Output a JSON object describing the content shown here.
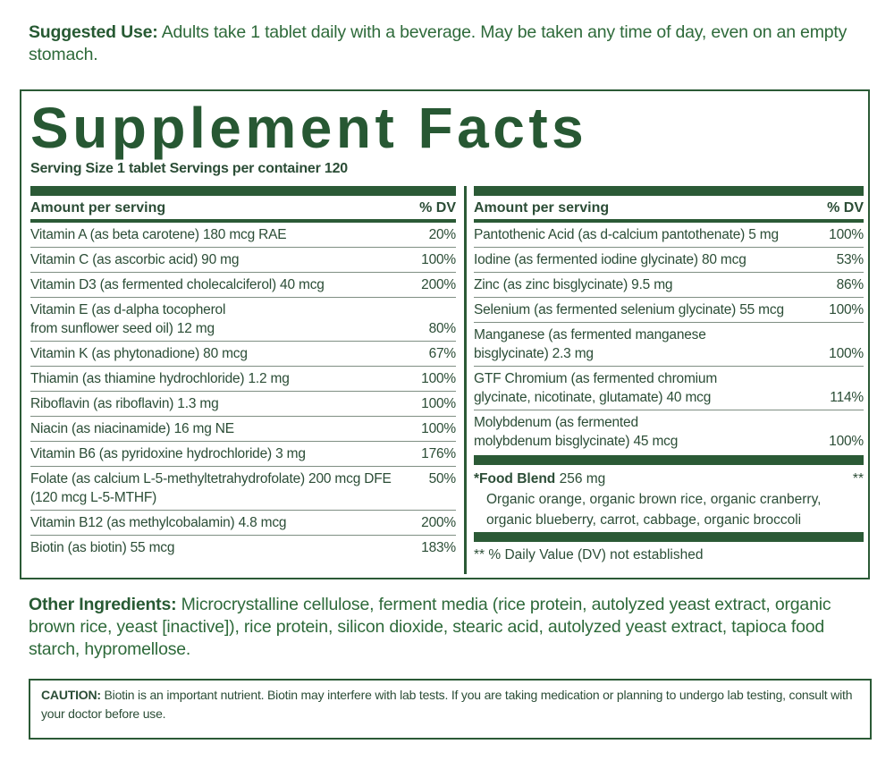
{
  "suggested_use": {
    "label": "Suggested Use:",
    "text": "Adults take 1 tablet daily with a beverage. May be taken any time of day, even on an empty stomach."
  },
  "facts": {
    "title": "Supplement Facts",
    "serving": "Serving Size 1 tablet  Servings per container 120",
    "header_amount": "Amount per serving",
    "header_dv": "% DV",
    "left_rows": [
      {
        "name": "Vitamin A (as beta carotene) 180 mcg RAE",
        "dv": "20%"
      },
      {
        "name": "Vitamin C (as ascorbic acid) 90 mg",
        "dv": "100%"
      },
      {
        "name": "Vitamin D3 (as fermented cholecalciferol) 40 mcg",
        "dv": "200%"
      },
      {
        "name": "Vitamin E (as d-alpha tocopherol\nfrom sunflower seed oil) 12 mg",
        "dv": "80%"
      },
      {
        "name": "Vitamin K (as phytonadione) 80 mcg",
        "dv": "67%"
      },
      {
        "name": "Thiamin (as thiamine hydrochloride) 1.2 mg",
        "dv": "100%"
      },
      {
        "name": "Riboflavin (as riboflavin) 1.3 mg",
        "dv": "100%"
      },
      {
        "name": "Niacin (as niacinamide) 16 mg NE",
        "dv": "100%"
      },
      {
        "name": "Vitamin B6 (as pyridoxine hydrochloride) 3 mg",
        "dv": "176%"
      },
      {
        "name": "Folate (as calcium L-5-methyltetrahydrofolate) 200 mcg DFE\n(120 mcg L-5-MTHF)",
        "dv": "50%"
      },
      {
        "name": "Vitamin B12 (as methylcobalamin) 4.8 mcg",
        "dv": "200%"
      },
      {
        "name": "Biotin (as biotin) 55 mcg",
        "dv": "183%"
      }
    ],
    "right_rows": [
      {
        "name": "Pantothenic Acid (as d-calcium pantothenate) 5 mg",
        "dv": "100%"
      },
      {
        "name": "Iodine (as fermented iodine glycinate) 80 mcg",
        "dv": "53%"
      },
      {
        "name": "Zinc (as zinc bisglycinate) 9.5 mg",
        "dv": "86%"
      },
      {
        "name": "Selenium (as fermented selenium glycinate) 55 mcg",
        "dv": "100%"
      },
      {
        "name": "Manganese (as fermented manganese\nbisglycinate) 2.3 mg",
        "dv": "100%"
      },
      {
        "name": "GTF Chromium (as fermented chromium\nglycinate, nicotinate, glutamate) 40 mcg",
        "dv": "114%"
      },
      {
        "name": "Molybdenum (as fermented\nmolybdenum bisglycinate) 45 mcg",
        "dv": "100%"
      }
    ],
    "blend": {
      "name": "*Food Blend",
      "amount": "256 mg",
      "dv": "**",
      "list": "Organic orange, organic brown rice, organic cranberry, organic blueberry, carrot, cabbage, organic broccoli"
    },
    "note": "** % Daily Value (DV) not established"
  },
  "other_ingredients": {
    "label": "Other Ingredients:",
    "text": "Microcrystalline cellulose, ferment media (rice protein, autolyzed yeast extract, organic brown rice, yeast [inactive]), rice protein, silicon dioxide, stearic acid, autolyzed yeast extract, tapioca food starch, hypromellose."
  },
  "caution": {
    "label": "CAUTION:",
    "text": "Biotin is an important nutrient. Biotin may interfere with lab tests. If you are taking medication or planning to undergo lab testing, consult with your doctor before use."
  },
  "colors": {
    "brand_green": "#2b5a36",
    "text": "#2b4d36"
  }
}
